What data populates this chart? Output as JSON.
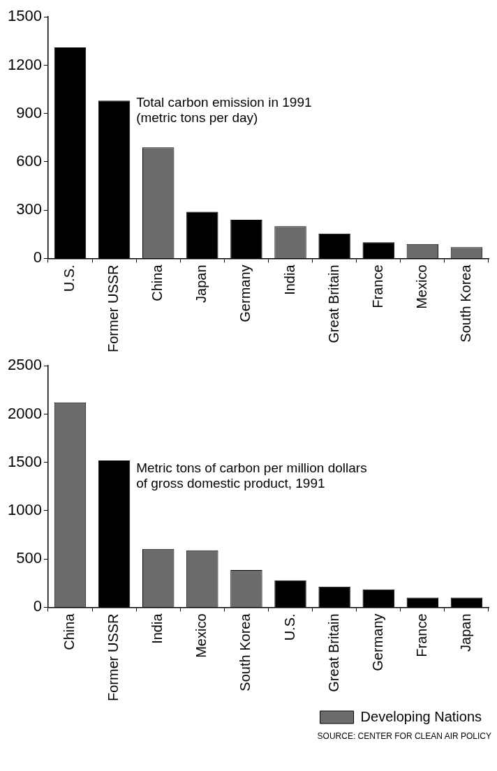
{
  "chart_data": [
    {
      "type": "bar",
      "title": "Total carbon emission in 1991\n(metric tons per day)",
      "categories": [
        "U.S.",
        "Former USSR",
        "China",
        "Japan",
        "Germany",
        "India",
        "Great Britain",
        "France",
        "Mexico",
        "South Korea"
      ],
      "stacked": true,
      "series": [
        {
          "color": "#6b6b6b",
          "values": [
            null,
            null,
            690,
            null,
            null,
            200,
            null,
            null,
            90,
            70
          ]
        },
        {
          "color": "#000000",
          "values": [
            1310,
            980,
            null,
            290,
            240,
            null,
            155,
            100,
            null,
            null
          ]
        }
      ],
      "ylim": [
        0,
        1500
      ],
      "yticks": [
        0,
        300,
        600,
        900,
        1200,
        1500
      ],
      "grid": false,
      "legend": false
    },
    {
      "type": "bar",
      "title": "Metric tons of carbon per million dollars\nof gross domestic product, 1991",
      "categories": [
        "China",
        "Former USSR",
        "India",
        "Mexico",
        "South Korea",
        "U.S.",
        "Great Britain",
        "Germany",
        "France",
        "Japan"
      ],
      "stacked": true,
      "series": [
        {
          "name": "Developing Nations",
          "color": "#6b6b6b",
          "values": [
            2120,
            null,
            605,
            590,
            385,
            null,
            null,
            null,
            null,
            null
          ]
        },
        {
          "color": "#000000",
          "values": [
            null,
            1520,
            null,
            null,
            null,
            280,
            215,
            185,
            100,
            100
          ]
        }
      ],
      "ylim": [
        0,
        2500
      ],
      "yticks": [
        0,
        500,
        1000,
        1500,
        2000,
        2500
      ],
      "grid": false,
      "legend": "bottom right",
      "annotations": [
        "SOURCE: CENTER FOR CLEAN AIR POLICY"
      ]
    }
  ]
}
